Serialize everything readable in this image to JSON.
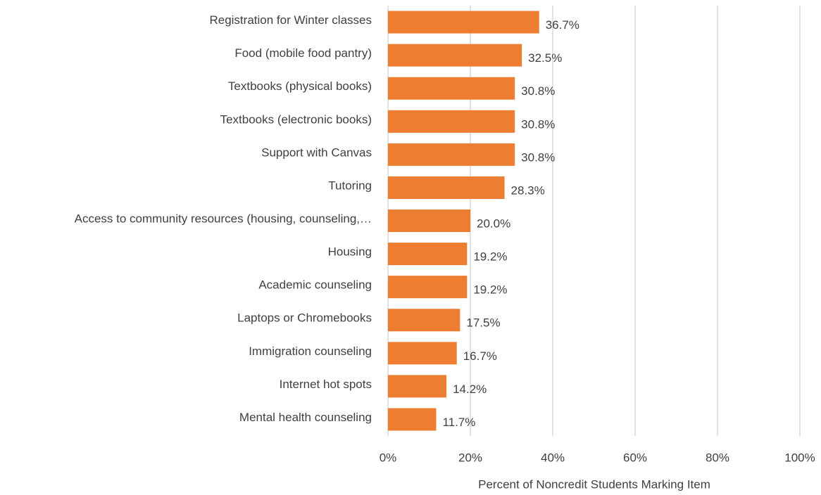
{
  "chart_data": {
    "type": "bar",
    "orientation": "horizontal",
    "x_label": "Percent of Noncredit Students Marking Item",
    "categories": [
      "Registration for Winter classes",
      "Food (mobile food pantry)",
      "Textbooks (physical books)",
      "Textbooks (electronic books)",
      "Support with Canvas",
      "Tutoring",
      "Access to community resources (housing, counseling,…",
      "Housing",
      "Academic counseling",
      "Laptops or Chromebooks",
      "Immigration counseling",
      "Internet hot spots",
      "Mental health counseling"
    ],
    "values": [
      36.7,
      32.5,
      30.8,
      30.8,
      30.8,
      28.3,
      20.0,
      19.2,
      19.2,
      17.5,
      16.7,
      14.2,
      11.7
    ],
    "value_labels": [
      "36.7%",
      "32.5%",
      "30.8%",
      "30.8%",
      "30.8%",
      "28.3%",
      "20.0%",
      "19.2%",
      "19.2%",
      "17.5%",
      "16.7%",
      "14.2%",
      "11.7%"
    ],
    "color": "#ed7d31",
    "xlim": [
      0,
      100
    ],
    "xticks": [
      {
        "value": 0,
        "label": "0%"
      },
      {
        "value": 20,
        "label": "20%"
      },
      {
        "value": 40,
        "label": "40%"
      },
      {
        "value": 60,
        "label": "60%"
      },
      {
        "value": 80,
        "label": "80%"
      },
      {
        "value": 100,
        "label": "100%"
      }
    ],
    "grid": true
  }
}
